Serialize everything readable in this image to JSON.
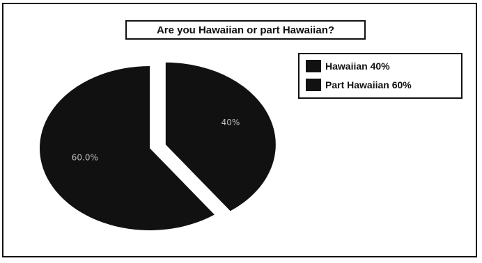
{
  "chart_data": {
    "type": "pie",
    "title": "Are you Hawaiian or part Hawaiian?",
    "slices": [
      {
        "name": "Hawaiian",
        "value": 40,
        "label": "40%",
        "legend": "Hawaiian  40%",
        "color": "#111111",
        "exploded": true
      },
      {
        "name": "Part Hawaiian",
        "value": 60,
        "label": "60.0%",
        "legend": "Part Hawaiian  60%",
        "color": "#111111",
        "exploded": false
      }
    ],
    "legend_position": "top-right"
  }
}
